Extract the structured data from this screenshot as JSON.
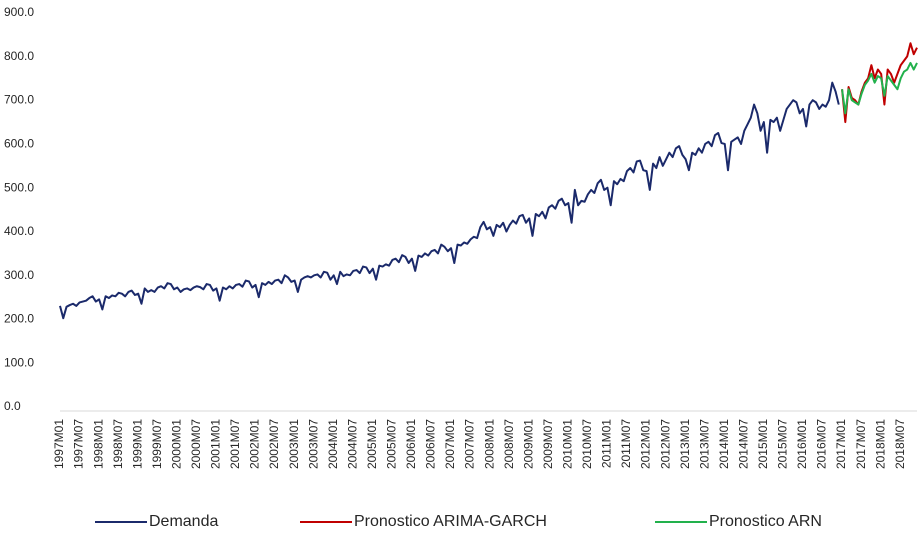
{
  "chart_data": {
    "type": "line",
    "categories": [
      "1997M01",
      null,
      null,
      null,
      null,
      null,
      "1997M07",
      null,
      null,
      null,
      null,
      null,
      "1998M01",
      null,
      null,
      null,
      null,
      null,
      "1998M07",
      null,
      null,
      null,
      null,
      null,
      "1999M01",
      null,
      null,
      null,
      null,
      null,
      "1999M07",
      null,
      null,
      null,
      null,
      null,
      "2000M01",
      null,
      null,
      null,
      null,
      null,
      "2000M07",
      null,
      null,
      null,
      null,
      null,
      "2001M01",
      null,
      null,
      null,
      null,
      null,
      "2001M07",
      null,
      null,
      null,
      null,
      null,
      "2002M01",
      null,
      null,
      null,
      null,
      null,
      "2002M07",
      null,
      null,
      null,
      null,
      null,
      "2003M01",
      null,
      null,
      null,
      null,
      null,
      "2003M07",
      null,
      null,
      null,
      null,
      null,
      "2004M01",
      null,
      null,
      null,
      null,
      null,
      "2004M07",
      null,
      null,
      null,
      null,
      null,
      "2005M01",
      null,
      null,
      null,
      null,
      null,
      "2005M07",
      null,
      null,
      null,
      null,
      null,
      "2006M01",
      null,
      null,
      null,
      null,
      null,
      "2006M07",
      null,
      null,
      null,
      null,
      null,
      "2007M01",
      null,
      null,
      null,
      null,
      null,
      "2007M07",
      null,
      null,
      null,
      null,
      null,
      "2008M01",
      null,
      null,
      null,
      null,
      null,
      "2008M07",
      null,
      null,
      null,
      null,
      null,
      "2009M01",
      null,
      null,
      null,
      null,
      null,
      "2009M07",
      null,
      null,
      null,
      null,
      null,
      "2010M01",
      null,
      null,
      null,
      null,
      null,
      "2010M07",
      null,
      null,
      null,
      null,
      null,
      "2011M01",
      null,
      null,
      null,
      null,
      null,
      "2011M07",
      null,
      null,
      null,
      null,
      null,
      "2012M01",
      null,
      null,
      null,
      null,
      null,
      "2012M07",
      null,
      null,
      null,
      null,
      null,
      "2013M01",
      null,
      null,
      null,
      null,
      null,
      "2013M07",
      null,
      null,
      null,
      null,
      null,
      "2014M01",
      null,
      null,
      null,
      null,
      null,
      "2014M07",
      null,
      null,
      null,
      null,
      null,
      "2015M01",
      null,
      null,
      null,
      null,
      null,
      "2015M07",
      null,
      null,
      null,
      null,
      null,
      "2016M01",
      null,
      null,
      null,
      null,
      null,
      "2016M07",
      null,
      null,
      null,
      null,
      null,
      "2017M01",
      null,
      null,
      null,
      null,
      null,
      "2017M07",
      null,
      null,
      null,
      null,
      null,
      "2018M01",
      null,
      null,
      null,
      null,
      null,
      "2018M07",
      null,
      null,
      null,
      null,
      null
    ],
    "series": [
      {
        "name": "Demanda",
        "color": "#1b2a6b",
        "values": [
          240,
          212,
          238,
          242,
          245,
          240,
          248,
          250,
          252,
          258,
          262,
          250,
          255,
          232,
          262,
          258,
          264,
          262,
          270,
          268,
          262,
          272,
          275,
          265,
          268,
          245,
          280,
          272,
          276,
          272,
          282,
          285,
          280,
          292,
          290,
          278,
          282,
          272,
          278,
          280,
          276,
          282,
          285,
          283,
          278,
          290,
          288,
          275,
          280,
          252,
          282,
          278,
          285,
          280,
          288,
          290,
          284,
          298,
          296,
          282,
          288,
          260,
          292,
          288,
          295,
          290,
          298,
          300,
          292,
          310,
          305,
          295,
          298,
          272,
          300,
          305,
          308,
          305,
          310,
          312,
          305,
          318,
          316,
          300,
          310,
          290,
          318,
          308,
          312,
          310,
          320,
          322,
          315,
          330,
          328,
          315,
          325,
          300,
          332,
          330,
          335,
          332,
          345,
          348,
          340,
          356,
          352,
          338,
          348,
          320,
          355,
          352,
          360,
          355,
          365,
          368,
          360,
          380,
          375,
          365,
          372,
          338,
          380,
          378,
          385,
          382,
          392,
          398,
          395,
          420,
          432,
          415,
          420,
          400,
          425,
          420,
          430,
          410,
          425,
          435,
          428,
          445,
          448,
          430,
          440,
          400,
          450,
          445,
          455,
          440,
          465,
          470,
          462,
          480,
          485,
          470,
          475,
          430,
          505,
          470,
          480,
          478,
          495,
          505,
          498,
          520,
          528,
          505,
          510,
          470,
          525,
          518,
          530,
          525,
          548,
          555,
          545,
          570,
          572,
          550,
          548,
          505,
          565,
          555,
          580,
          560,
          575,
          590,
          580,
          600,
          605,
          585,
          575,
          550,
          590,
          585,
          600,
          590,
          610,
          615,
          605,
          630,
          635,
          612,
          610,
          550,
          615,
          620,
          625,
          610,
          640,
          655,
          670,
          700,
          680,
          640,
          660,
          590,
          665,
          660,
          670,
          640,
          665,
          690,
          700,
          710,
          705,
          680,
          690,
          650,
          700,
          710,
          705,
          690,
          700,
          695,
          710,
          750,
          730,
          700,
          null,
          null,
          null,
          null,
          null,
          null,
          null,
          null,
          null,
          null,
          null,
          null,
          null,
          null,
          null,
          null,
          null,
          null,
          null,
          null,
          null,
          null,
          null,
          null
        ]
      },
      {
        "name": "Pronostico ARIMA-GARCH",
        "color": "#c00000",
        "values": [
          null,
          null,
          null,
          null,
          null,
          null,
          null,
          null,
          null,
          null,
          null,
          null,
          null,
          null,
          null,
          null,
          null,
          null,
          null,
          null,
          null,
          null,
          null,
          null,
          null,
          null,
          null,
          null,
          null,
          null,
          null,
          null,
          null,
          null,
          null,
          null,
          null,
          null,
          null,
          null,
          null,
          null,
          null,
          null,
          null,
          null,
          null,
          null,
          null,
          null,
          null,
          null,
          null,
          null,
          null,
          null,
          null,
          null,
          null,
          null,
          null,
          null,
          null,
          null,
          null,
          null,
          null,
          null,
          null,
          null,
          null,
          null,
          null,
          null,
          null,
          null,
          null,
          null,
          null,
          null,
          null,
          null,
          null,
          null,
          null,
          null,
          null,
          null,
          null,
          null,
          null,
          null,
          null,
          null,
          null,
          null,
          null,
          null,
          null,
          null,
          null,
          null,
          null,
          null,
          null,
          null,
          null,
          null,
          null,
          null,
          null,
          null,
          null,
          null,
          null,
          null,
          null,
          null,
          null,
          null,
          null,
          null,
          null,
          null,
          null,
          null,
          null,
          null,
          null,
          null,
          null,
          null,
          null,
          null,
          null,
          null,
          null,
          null,
          null,
          null,
          null,
          null,
          null,
          null,
          null,
          null,
          null,
          null,
          null,
          null,
          null,
          null,
          null,
          null,
          null,
          null,
          null,
          null,
          null,
          null,
          null,
          null,
          null,
          null,
          null,
          null,
          null,
          null,
          null,
          null,
          null,
          null,
          null,
          null,
          null,
          null,
          null,
          null,
          null,
          null,
          null,
          null,
          null,
          null,
          null,
          null,
          null,
          null,
          null,
          null,
          null,
          null,
          null,
          null,
          null,
          null,
          null,
          null,
          null,
          null,
          null,
          null,
          null,
          null,
          null,
          null,
          null,
          null,
          null,
          null,
          null,
          null,
          null,
          null,
          null,
          null,
          null,
          null,
          null,
          null,
          null,
          null,
          null,
          null,
          null,
          null,
          null,
          null,
          null,
          null,
          null,
          null,
          null,
          null,
          null,
          null,
          null,
          null,
          null,
          null,
          735,
          660,
          740,
          715,
          710,
          700,
          730,
          750,
          760,
          790,
          760,
          780,
          770,
          700,
          780,
          770,
          750,
          770,
          790,
          800,
          810,
          840,
          815,
          830
        ]
      },
      {
        "name": "Pronostico ARN",
        "color": "#22b14c",
        "values": [
          null,
          null,
          null,
          null,
          null,
          null,
          null,
          null,
          null,
          null,
          null,
          null,
          null,
          null,
          null,
          null,
          null,
          null,
          null,
          null,
          null,
          null,
          null,
          null,
          null,
          null,
          null,
          null,
          null,
          null,
          null,
          null,
          null,
          null,
          null,
          null,
          null,
          null,
          null,
          null,
          null,
          null,
          null,
          null,
          null,
          null,
          null,
          null,
          null,
          null,
          null,
          null,
          null,
          null,
          null,
          null,
          null,
          null,
          null,
          null,
          null,
          null,
          null,
          null,
          null,
          null,
          null,
          null,
          null,
          null,
          null,
          null,
          null,
          null,
          null,
          null,
          null,
          null,
          null,
          null,
          null,
          null,
          null,
          null,
          null,
          null,
          null,
          null,
          null,
          null,
          null,
          null,
          null,
          null,
          null,
          null,
          null,
          null,
          null,
          null,
          null,
          null,
          null,
          null,
          null,
          null,
          null,
          null,
          null,
          null,
          null,
          null,
          null,
          null,
          null,
          null,
          null,
          null,
          null,
          null,
          null,
          null,
          null,
          null,
          null,
          null,
          null,
          null,
          null,
          null,
          null,
          null,
          null,
          null,
          null,
          null,
          null,
          null,
          null,
          null,
          null,
          null,
          null,
          null,
          null,
          null,
          null,
          null,
          null,
          null,
          null,
          null,
          null,
          null,
          null,
          null,
          null,
          null,
          null,
          null,
          null,
          null,
          null,
          null,
          null,
          null,
          null,
          null,
          null,
          null,
          null,
          null,
          null,
          null,
          null,
          null,
          null,
          null,
          null,
          null,
          null,
          null,
          null,
          null,
          null,
          null,
          null,
          null,
          null,
          null,
          null,
          null,
          null,
          null,
          null,
          null,
          null,
          null,
          null,
          null,
          null,
          null,
          null,
          null,
          null,
          null,
          null,
          null,
          null,
          null,
          null,
          null,
          null,
          null,
          null,
          null,
          null,
          null,
          null,
          null,
          null,
          null,
          null,
          null,
          null,
          null,
          null,
          null,
          null,
          null,
          null,
          null,
          null,
          null,
          null,
          null,
          null,
          null,
          null,
          null,
          735,
          680,
          735,
          710,
          705,
          700,
          725,
          745,
          755,
          770,
          750,
          765,
          760,
          720,
          765,
          755,
          745,
          735,
          760,
          775,
          780,
          795,
          780,
          795
        ]
      }
    ],
    "ylim": [
      0,
      900
    ],
    "yticks": [
      {
        "value": 0,
        "label": "0.0"
      },
      {
        "value": 100,
        "label": "100.0"
      },
      {
        "value": 200,
        "label": "200.0"
      },
      {
        "value": 300,
        "label": "300.0"
      },
      {
        "value": 400,
        "label": "400.0"
      },
      {
        "value": 500,
        "label": "500.0"
      },
      {
        "value": 600,
        "label": "600.0"
      },
      {
        "value": 700,
        "label": "700.0"
      },
      {
        "value": 800,
        "label": "800.0"
      },
      {
        "value": 900,
        "label": "900.0"
      }
    ],
    "grid": false,
    "legend": "bottom"
  }
}
